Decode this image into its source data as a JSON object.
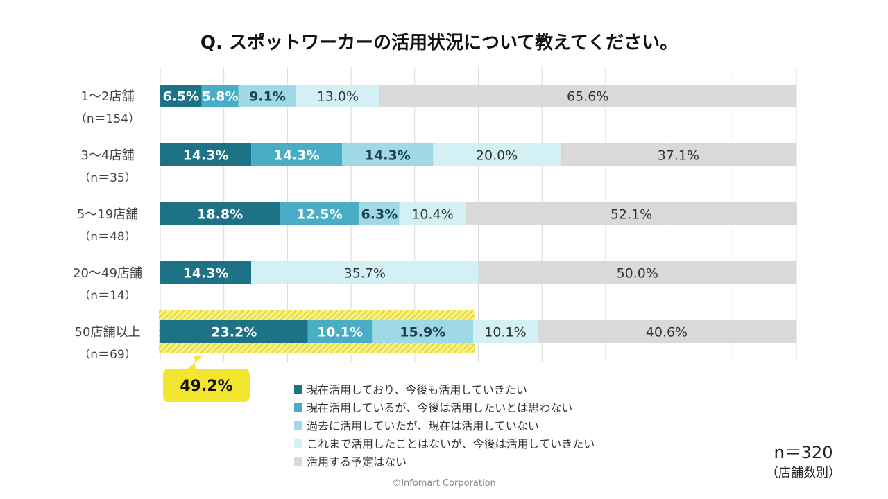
{
  "chart_data": {
    "type": "bar",
    "orientation": "horizontal",
    "stacked": "100%",
    "title": "Q. スポットワーカーの活用状況について教えてください。",
    "categories": [
      "1～2店舗",
      "3～4店舗",
      "5～19店舗",
      "20～49店舗",
      "50店舗以上"
    ],
    "category_n": [
      "（n＝154）",
      "（n＝35）",
      "（n＝48）",
      "（n＝14）",
      "（n＝69）"
    ],
    "series": [
      {
        "name": "現在活用しており、今後も活用していきたい",
        "color": "#1e7285",
        "label_color": "#ffffff",
        "bold": true,
        "values": [
          6.5,
          14.3,
          18.8,
          14.3,
          23.2
        ],
        "labels": [
          "6.5%",
          "14.3%",
          "18.8%",
          "14.3%",
          "23.2%"
        ]
      },
      {
        "name": "現在活用しているが、今後は活用したいとは思わない",
        "color": "#4aadc6",
        "label_color": "#ffffff",
        "bold": true,
        "values": [
          5.8,
          14.3,
          12.5,
          0,
          10.1
        ],
        "labels": [
          "5.8%",
          "14.3%",
          "12.5%",
          "",
          "10.1%"
        ]
      },
      {
        "name": "過去に活用していたが、現在は活用していない",
        "color": "#9fd9e6",
        "label_color": "#1f3f4a",
        "bold": true,
        "values": [
          9.1,
          14.3,
          6.3,
          0,
          15.9
        ],
        "labels": [
          "9.1%",
          "14.3%",
          "6.3%",
          "",
          "15.9%"
        ]
      },
      {
        "name": "これまで活用したことはないが、今後は活用していきたい",
        "color": "#d3f0f5",
        "label_color": "#333333",
        "bold": false,
        "values": [
          13.0,
          20.0,
          10.4,
          35.7,
          10.1
        ],
        "labels": [
          "13.0%",
          "20.0%",
          "10.4%",
          "35.7%",
          "10.1%"
        ]
      },
      {
        "name": "活用する予定はない",
        "color": "#d9d9d9",
        "label_color": "#333333",
        "bold": false,
        "values": [
          65.6,
          37.1,
          52.1,
          50.0,
          40.6
        ],
        "labels": [
          "65.6%",
          "37.1%",
          "52.1%",
          "50.0%",
          "40.6%"
        ]
      }
    ],
    "xlim": [
      0,
      100
    ],
    "grid": true,
    "legend_position": "bottom-center",
    "highlight": {
      "category": "50店舗以上",
      "label": "49.2%",
      "color": "#f2e52e"
    }
  },
  "footer": {
    "total_n": "n＝320",
    "total_note": "（店舗数別）",
    "copyright": "©Infomart Corporation"
  }
}
